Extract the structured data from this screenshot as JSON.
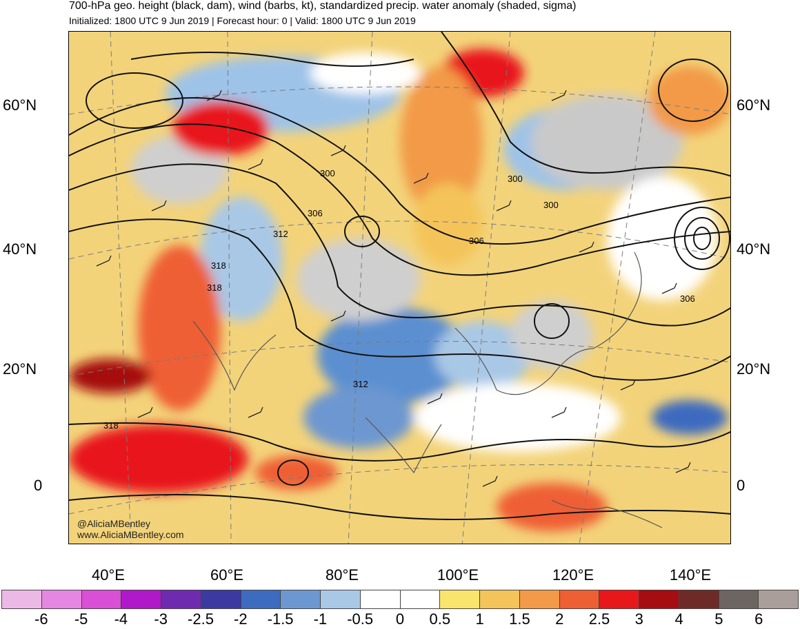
{
  "header": {
    "title": "700-hPa geo. height (black, dam), wind (barbs, kt), standardized precip. water anomaly (shaded, sigma)",
    "subtitle": "Initialized: 1800 UTC 9 Jun 2019 | Forecast hour: 0 | Valid: 1800 UTC 9 Jun 2019"
  },
  "map": {
    "lat_labels_left": [
      "60°N",
      "40°N",
      "20°N",
      "0"
    ],
    "lat_labels_right": [
      "60°N",
      "40°N",
      "20°N",
      "0"
    ],
    "lon_labels": [
      "40°E",
      "60°E",
      "80°E",
      "100°E",
      "120°E",
      "140°E"
    ],
    "contour_labels": [
      "300",
      "306",
      "312",
      "318",
      "318",
      "300",
      "300",
      "306",
      "306",
      "312",
      "318"
    ],
    "credit_handle": "@AliciaMBentley",
    "credit_url": "www.AliciaMBentley.com"
  },
  "colorbar": {
    "labels": [
      "-6",
      "-5",
      "-4",
      "-3",
      "-2.5",
      "-2",
      "-1.5",
      "-1",
      "-0.5",
      "0",
      "0.5",
      "1",
      "1.5",
      "2",
      "2.5",
      "3",
      "4",
      "5",
      "6"
    ],
    "colors": [
      "#ecb9e6",
      "#e587e2",
      "#d94fd6",
      "#b018c9",
      "#6f2bb0",
      "#3a3aa0",
      "#3d6bbf",
      "#6d97d0",
      "#a9c8e6",
      "#ffffff",
      "#ffffff",
      "#f9e46e",
      "#f4c45a",
      "#f29a47",
      "#ef5f34",
      "#e8171a",
      "#a60d10",
      "#6e2a27",
      "#6d6562",
      "#aa9e9b"
    ]
  }
}
